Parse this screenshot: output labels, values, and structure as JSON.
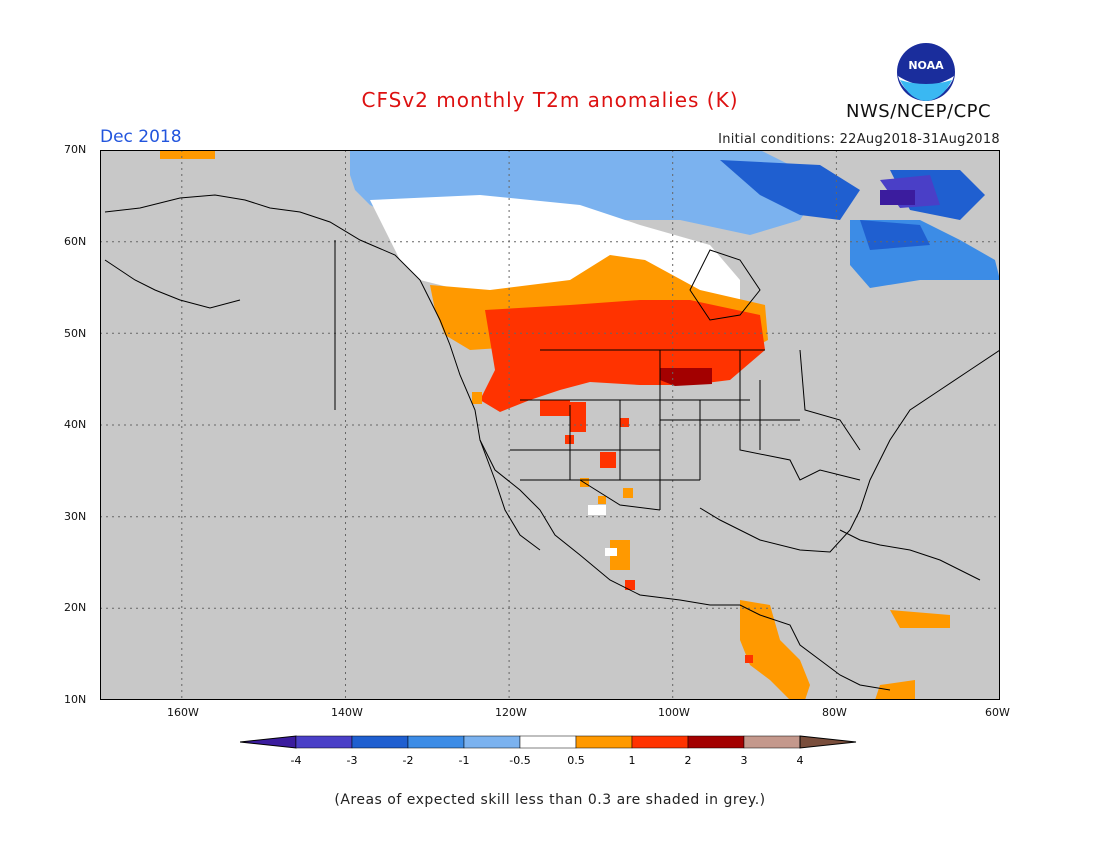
{
  "title": "CFSv2 monthly T2m anomalies (K)",
  "agency": "NWS/NCEP/CPC",
  "logo_text": "NOAA",
  "forecast_month": "Dec 2018",
  "initial_conditions": "Initial conditions: 22Aug2018-31Aug2018",
  "footnote": "(Areas of expected skill less than 0.3 are shaded in grey.)",
  "colors": {
    "title": "#dd1111",
    "month": "#2255dd",
    "low_skill_grey": "#c8c8c8",
    "land_line": "#000000"
  },
  "map": {
    "lat_labels": [
      "70N",
      "60N",
      "50N",
      "40N",
      "30N",
      "20N",
      "10N"
    ],
    "lon_labels": [
      "160W",
      "140W",
      "120W",
      "100W",
      "80W",
      "60W"
    ]
  },
  "legend": {
    "labels": [
      "-4",
      "-3",
      "-2",
      "-1",
      "-0.5",
      "0.5",
      "1",
      "2",
      "3",
      "4"
    ],
    "colors": [
      "#3b1c9e",
      "#4a3fc7",
      "#1f5fd0",
      "#3c8ce6",
      "#7bb2ef",
      "#ffffff",
      "#ff9900",
      "#ff3300",
      "#a30000",
      "#c4988c",
      "#7a4e3c"
    ]
  },
  "regions": [
    {
      "name": "cold-arctic-canada",
      "color": "#7bb2ef"
    },
    {
      "name": "neutral-band",
      "color": "#ffffff"
    },
    {
      "name": "warm-prairie",
      "color": "#ff9900"
    },
    {
      "name": "hot-northern-plains",
      "color": "#ff3300"
    },
    {
      "name": "very-hot-core",
      "color": "#a30000"
    },
    {
      "name": "cold-labrador",
      "color": "#3c8ce6"
    },
    {
      "name": "cold-hudson",
      "color": "#1f5fd0"
    },
    {
      "name": "very-cold-baffin",
      "color": "#4a3fc7"
    },
    {
      "name": "extreme-cold-baffin",
      "color": "#3b1c9e"
    },
    {
      "name": "warm-central-america",
      "color": "#ff9900"
    },
    {
      "name": "warm-caribbean",
      "color": "#ff9900"
    }
  ]
}
